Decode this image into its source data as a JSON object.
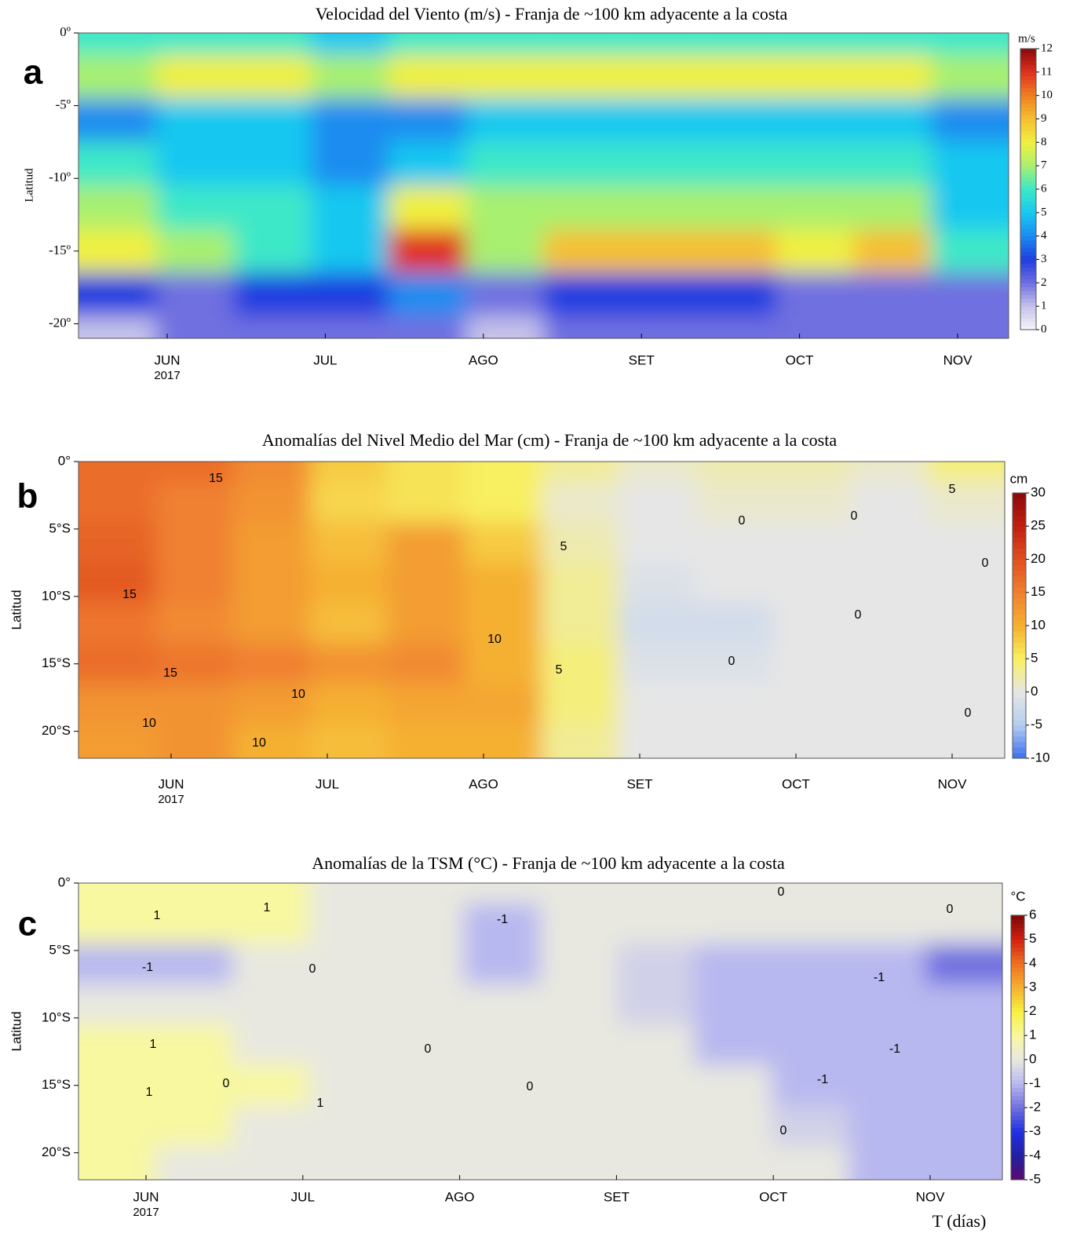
{
  "chart_data": [
    {
      "type": "heatmap",
      "panel_label": "a",
      "title": "Velocidad del Viento (m/s) - Franja de ~100 km adyacente a la costa",
      "y_label": "Latitud",
      "x": [
        "JUN",
        "JUL",
        "AGO",
        "SET",
        "OCT",
        "NOV"
      ],
      "x_year": "2017",
      "ylim": [
        -21,
        0
      ],
      "yticks": [
        {
          "value": 0,
          "label": "0º"
        },
        {
          "value": -5,
          "label": "-5º"
        },
        {
          "value": -10,
          "label": "-10º"
        },
        {
          "value": -15,
          "label": "-15º"
        },
        {
          "value": -20,
          "label": "-20º"
        }
      ],
      "y": [
        0,
        -3,
        -6,
        -9,
        -12,
        -15,
        -18,
        -21
      ],
      "z": [
        [
          6,
          6,
          6,
          5,
          6,
          6,
          6,
          6,
          6,
          6,
          6,
          6
        ],
        [
          7,
          8,
          8,
          7,
          8,
          8,
          8,
          8,
          8,
          8,
          8,
          7
        ],
        [
          4,
          5,
          5,
          4,
          4,
          5,
          5,
          5,
          5,
          5,
          5,
          4
        ],
        [
          6,
          5,
          5,
          4,
          5,
          6,
          6,
          6,
          6,
          6,
          6,
          5
        ],
        [
          7,
          6,
          6,
          5,
          8,
          7,
          7,
          7,
          7,
          7,
          7,
          5
        ],
        [
          8,
          7,
          6,
          5,
          11,
          7,
          9,
          9,
          9,
          8,
          9,
          6
        ],
        [
          3,
          2,
          3,
          3,
          4,
          2,
          3,
          3,
          3,
          2,
          2,
          2
        ],
        [
          1,
          2,
          2,
          2,
          2,
          1,
          2,
          2,
          2,
          2,
          2,
          2
        ]
      ],
      "colorbar": {
        "unit": "m/s",
        "ticks": [
          0,
          1,
          2,
          3,
          4,
          5,
          6,
          7,
          8,
          9,
          10,
          11,
          12
        ],
        "colors": [
          "#f4f4f8",
          "#c6c3ea",
          "#6f6fe0",
          "#1f3de0",
          "#1a8cf0",
          "#18c8f0",
          "#3ce8c8",
          "#a8f070",
          "#f0f040",
          "#f5c030",
          "#f08020",
          "#e03020",
          "#8a0a0a"
        ]
      },
      "contour_labels": []
    },
    {
      "type": "heatmap",
      "panel_label": "b",
      "title": "Anomalías del Nivel Medio del Mar (cm) - Franja de ~100 km adyacente a la costa",
      "y_label": "Latitud",
      "x": [
        "JUN",
        "JUL",
        "AGO",
        "SET",
        "OCT",
        "NOV"
      ],
      "x_year": "2017",
      "ylim": [
        -22,
        0
      ],
      "yticks": [
        {
          "value": 0,
          "label": "0°"
        },
        {
          "value": -5,
          "label": "5°S"
        },
        {
          "value": -10,
          "label": "10°S"
        },
        {
          "value": -15,
          "label": "15°S"
        },
        {
          "value": -20,
          "label": "20°S"
        }
      ],
      "y": [
        0,
        -3,
        -6,
        -9,
        -12,
        -15,
        -18,
        -21
      ],
      "z": [
        [
          17,
          17,
          14,
          8,
          6,
          5,
          3,
          1,
          2,
          2,
          1,
          4
        ],
        [
          17,
          15,
          13,
          7,
          6,
          5,
          1,
          0,
          1,
          1,
          0,
          1
        ],
        [
          18,
          15,
          12,
          9,
          12,
          8,
          2,
          0,
          0,
          0,
          0,
          0
        ],
        [
          19,
          15,
          12,
          10,
          12,
          10,
          3,
          -1,
          0,
          0,
          0,
          0
        ],
        [
          16,
          14,
          12,
          9,
          12,
          10,
          3,
          -2,
          -2,
          0,
          0,
          0
        ],
        [
          17,
          16,
          15,
          13,
          14,
          10,
          4,
          -1,
          -1,
          0,
          0,
          0
        ],
        [
          13,
          13,
          12,
          10,
          11,
          11,
          4,
          0,
          0,
          0,
          0,
          0
        ],
        [
          12,
          13,
          10,
          9,
          10,
          10,
          3,
          0,
          0,
          0,
          0,
          0
        ]
      ],
      "colorbar": {
        "unit": "cm",
        "ticks": [
          -10,
          -5,
          0,
          5,
          10,
          15,
          20,
          25,
          30
        ],
        "colors": [
          "#3a6ef0",
          "#b4cdf0",
          "#e6e6e6",
          "#f8f060",
          "#f5b030",
          "#f08030",
          "#e05020",
          "#c02010",
          "#8a0a0a"
        ]
      },
      "contour_labels": [
        15,
        15,
        15,
        10,
        10,
        10,
        10,
        5,
        5,
        5,
        0,
        0,
        0,
        0,
        0,
        0
      ]
    },
    {
      "type": "heatmap",
      "panel_label": "c",
      "title": "Anomalías de la TSM (°C) - Franja de ~100 km adyacente a la costa",
      "y_label": "Latitud",
      "x_label": "T (días)",
      "x": [
        "JUN",
        "JUL",
        "AGO",
        "SET",
        "OCT",
        "NOV"
      ],
      "x_year": "2017",
      "ylim": [
        -22,
        0
      ],
      "yticks": [
        {
          "value": 0,
          "label": "0°"
        },
        {
          "value": -5,
          "label": "5°S"
        },
        {
          "value": -10,
          "label": "10°S"
        },
        {
          "value": -15,
          "label": "15°S"
        },
        {
          "value": -20,
          "label": "20°S"
        }
      ],
      "y": [
        0,
        -3,
        -6,
        -9,
        -12,
        -15,
        -18,
        -21
      ],
      "z": [
        [
          1,
          1,
          1,
          0,
          0,
          0,
          0,
          0,
          0,
          0,
          0,
          0
        ],
        [
          1,
          1,
          1,
          0,
          0,
          -1,
          0,
          0,
          0,
          0,
          0,
          0
        ],
        [
          -1,
          -1,
          0,
          0,
          0,
          -1,
          0,
          -0.5,
          -1,
          -1,
          -1,
          -2
        ],
        [
          0,
          0,
          0,
          0,
          0,
          0,
          0,
          -0.5,
          -1,
          -1,
          -1,
          -1
        ],
        [
          1,
          1,
          0,
          0,
          0,
          0,
          0,
          0,
          -1,
          -1,
          -1,
          -1
        ],
        [
          1,
          1,
          1,
          0,
          0,
          0,
          0,
          0,
          0,
          -1,
          -1,
          -1
        ],
        [
          1,
          1,
          0,
          0,
          0,
          0,
          0,
          0,
          0,
          -0.5,
          -1,
          -1
        ],
        [
          1,
          0,
          0,
          0,
          0,
          0,
          0,
          0,
          0,
          0,
          -1,
          -1
        ]
      ],
      "colorbar": {
        "unit": "°C",
        "ticks": [
          -5,
          -4,
          -3,
          -2,
          -1,
          0,
          1,
          2,
          3,
          4,
          5,
          6
        ],
        "colors": [
          "#5a0a6e",
          "#2020a0",
          "#2030e0",
          "#7070e0",
          "#b8b8f0",
          "#e8e8e0",
          "#f8f8a0",
          "#f8f040",
          "#f5b030",
          "#f07020",
          "#d02010",
          "#7a0808"
        ]
      },
      "contour_labels": [
        1,
        1,
        -1,
        0,
        1,
        0,
        1,
        0,
        1,
        0,
        -1,
        0,
        0,
        -1,
        -1,
        -1,
        0
      ]
    }
  ]
}
